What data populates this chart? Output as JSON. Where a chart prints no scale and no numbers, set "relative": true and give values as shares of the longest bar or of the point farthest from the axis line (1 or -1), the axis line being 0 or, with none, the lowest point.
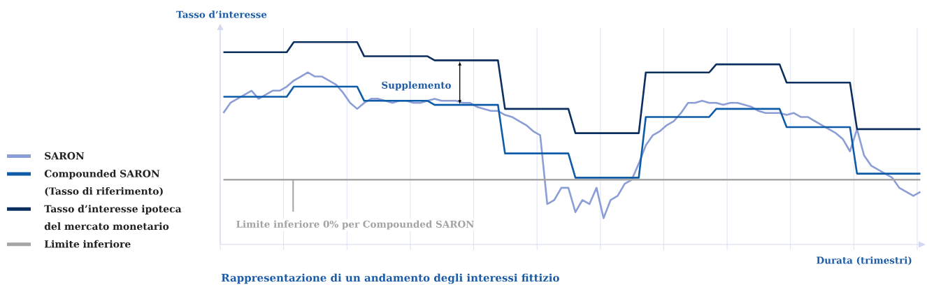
{
  "chart_data": {
    "type": "line",
    "xlabel": "Durata (trimestri)",
    "ylabel": "Tasso d’interesse",
    "relative": true,
    "categories": [
      null,
      null,
      null,
      null,
      null,
      null,
      null,
      null,
      null,
      null,
      null,
      null,
      null,
      null,
      null,
      null,
      null,
      null,
      null,
      null,
      null,
      null,
      null,
      null,
      null,
      null,
      null,
      null,
      null,
      null,
      null,
      null,
      null,
      null,
      null,
      null,
      null,
      null,
      null,
      null,
      null,
      null,
      null,
      null,
      null,
      null,
      null,
      null,
      null,
      null,
      null,
      null,
      null,
      null,
      null,
      null,
      null,
      null,
      null,
      null,
      null,
      null,
      null,
      null,
      null,
      null,
      null,
      null,
      null,
      null,
      null,
      null,
      null,
      null,
      null,
      null,
      null,
      null,
      null,
      null,
      null,
      null,
      null,
      null,
      null,
      null,
      null,
      null,
      null,
      null,
      null,
      null,
      null,
      null,
      null,
      null,
      null,
      null,
      null,
      null
    ],
    "grid": "x",
    "legend": "left",
    "series": [
      {
        "name": "SARON",
        "color": "#8C9ED6",
        "values": [
          0.65,
          0.7,
          0.72,
          0.74,
          0.76,
          0.72,
          0.74,
          0.76,
          0.76,
          0.78,
          0.81,
          0.83,
          0.85,
          0.83,
          0.83,
          0.81,
          0.79,
          0.75,
          0.7,
          0.67,
          0.7,
          0.72,
          0.72,
          0.71,
          0.7,
          0.71,
          0.71,
          0.7,
          0.7,
          0.71,
          0.72,
          0.71,
          0.71,
          0.71,
          0.7,
          0.7,
          0.68,
          0.67,
          0.66,
          0.66,
          0.64,
          0.63,
          0.61,
          0.59,
          0.56,
          0.54,
          0.2,
          0.22,
          0.28,
          0.28,
          0.16,
          0.22,
          0.2,
          0.28,
          0.13,
          0.22,
          0.24,
          0.3,
          0.32,
          0.4,
          0.49,
          0.54,
          0.56,
          0.59,
          0.61,
          0.65,
          0.7,
          0.7,
          0.71,
          0.7,
          0.7,
          0.69,
          0.7,
          0.7,
          0.69,
          0.68,
          0.66,
          0.65,
          0.65,
          0.65,
          0.64,
          0.65,
          0.63,
          0.63,
          0.61,
          0.59,
          0.57,
          0.55,
          0.52,
          0.46,
          0.57,
          0.44,
          0.39,
          0.37,
          0.35,
          0.33,
          0.28,
          0.26,
          0.24,
          0.26
        ]
      },
      {
        "name": "Compounded SARON (Tasso di riferimento)",
        "color": "#0E5BA8",
        "values": [
          0.73,
          0.73,
          0.73,
          0.73,
          0.73,
          0.73,
          0.73,
          0.73,
          0.73,
          0.73,
          0.78,
          0.78,
          0.78,
          0.78,
          0.78,
          0.78,
          0.78,
          0.78,
          0.78,
          0.78,
          0.71,
          0.71,
          0.71,
          0.71,
          0.71,
          0.71,
          0.71,
          0.71,
          0.71,
          0.71,
          0.69,
          0.69,
          0.69,
          0.69,
          0.69,
          0.69,
          0.69,
          0.69,
          0.69,
          0.69,
          0.45,
          0.45,
          0.45,
          0.45,
          0.45,
          0.45,
          0.45,
          0.45,
          0.45,
          0.45,
          0.33,
          0.33,
          0.33,
          0.33,
          0.33,
          0.33,
          0.33,
          0.33,
          0.33,
          0.33,
          0.63,
          0.63,
          0.63,
          0.63,
          0.63,
          0.63,
          0.63,
          0.63,
          0.63,
          0.63,
          0.67,
          0.67,
          0.67,
          0.67,
          0.67,
          0.67,
          0.67,
          0.67,
          0.67,
          0.67,
          0.58,
          0.58,
          0.58,
          0.58,
          0.58,
          0.58,
          0.58,
          0.58,
          0.58,
          0.58,
          0.35,
          0.35,
          0.35,
          0.35,
          0.35,
          0.35,
          0.35,
          0.35,
          0.35,
          0.35
        ]
      },
      {
        "name": "Tasso d’interesse ipoteca del mercato monetario",
        "color": "#0B2F5E",
        "values": [
          0.95,
          0.95,
          0.95,
          0.95,
          0.95,
          0.95,
          0.95,
          0.95,
          0.95,
          0.95,
          1,
          1,
          1,
          1,
          1,
          1,
          1,
          1,
          1,
          1,
          0.93,
          0.93,
          0.93,
          0.93,
          0.93,
          0.93,
          0.93,
          0.93,
          0.93,
          0.93,
          0.91,
          0.91,
          0.91,
          0.91,
          0.91,
          0.91,
          0.91,
          0.91,
          0.91,
          0.91,
          0.67,
          0.67,
          0.67,
          0.67,
          0.67,
          0.67,
          0.67,
          0.67,
          0.67,
          0.67,
          0.55,
          0.55,
          0.55,
          0.55,
          0.55,
          0.55,
          0.55,
          0.55,
          0.55,
          0.55,
          0.85,
          0.85,
          0.85,
          0.85,
          0.85,
          0.85,
          0.85,
          0.85,
          0.85,
          0.85,
          0.89,
          0.89,
          0.89,
          0.89,
          0.89,
          0.89,
          0.89,
          0.89,
          0.89,
          0.89,
          0.8,
          0.8,
          0.8,
          0.8,
          0.8,
          0.8,
          0.8,
          0.8,
          0.8,
          0.8,
          0.57,
          0.57,
          0.57,
          0.57,
          0.57,
          0.57,
          0.57,
          0.57,
          0.57,
          0.57
        ]
      },
      {
        "name": "Limite inferiore",
        "color": "#A5A5A5",
        "values": [
          0.32,
          0.32,
          0.32,
          0.32,
          0.32,
          0.32,
          0.32,
          0.32,
          0.32,
          0.32,
          0.32,
          0.32,
          0.32,
          0.32,
          0.32,
          0.32,
          0.32,
          0.32,
          0.32,
          0.32,
          0.32,
          0.32,
          0.32,
          0.32,
          0.32,
          0.32,
          0.32,
          0.32,
          0.32,
          0.32,
          0.32,
          0.32,
          0.32,
          0.32,
          0.32,
          0.32,
          0.32,
          0.32,
          0.32,
          0.32,
          0.32,
          0.32,
          0.32,
          0.32,
          0.32,
          0.32,
          0.32,
          0.32,
          0.32,
          0.32,
          0.32,
          0.32,
          0.32,
          0.32,
          0.32,
          0.32,
          0.32,
          0.32,
          0.32,
          0.32,
          0.32,
          0.32,
          0.32,
          0.32,
          0.32,
          0.32,
          0.32,
          0.32,
          0.32,
          0.32,
          0.32,
          0.32,
          0.32,
          0.32,
          0.32,
          0.32,
          0.32,
          0.32,
          0.32,
          0.32,
          0.32,
          0.32,
          0.32,
          0.32,
          0.32,
          0.32,
          0.32,
          0.32,
          0.32,
          0.32,
          0.32,
          0.32,
          0.32,
          0.32,
          0.32,
          0.32,
          0.32,
          0.32,
          0.32,
          0.32
        ]
      }
    ],
    "annotations": [
      "Supplemento",
      "Limite inferiore 0% per Compounded SARON",
      "Rappresentazione di un andamento degli interessi fittizio"
    ]
  }
}
